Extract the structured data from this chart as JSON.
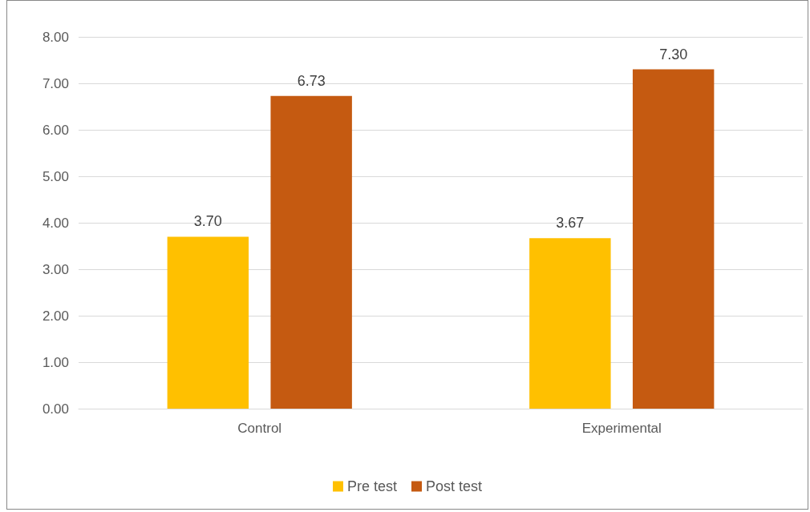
{
  "chart_data": {
    "type": "bar",
    "categories": [
      "Control",
      "Experimental"
    ],
    "series": [
      {
        "name": "Pre test",
        "color": "#ffc000",
        "values": [
          3.7,
          3.67
        ],
        "value_labels": [
          "3.70",
          "3.67"
        ]
      },
      {
        "name": "Post test",
        "color": "#c55a11",
        "values": [
          6.73,
          7.3
        ],
        "value_labels": [
          "6.73",
          "7.30"
        ]
      }
    ],
    "ylim": [
      0,
      8
    ],
    "yticks": [
      {
        "value": 0,
        "label": "0.00"
      },
      {
        "value": 1,
        "label": "1.00"
      },
      {
        "value": 2,
        "label": "2.00"
      },
      {
        "value": 3,
        "label": "3.00"
      },
      {
        "value": 4,
        "label": "4.00"
      },
      {
        "value": 5,
        "label": "5.00"
      },
      {
        "value": 6,
        "label": "6.00"
      },
      {
        "value": 7,
        "label": "7.00"
      },
      {
        "value": 8,
        "label": "8.00"
      }
    ],
    "grid": "y",
    "legend": "bottom"
  }
}
